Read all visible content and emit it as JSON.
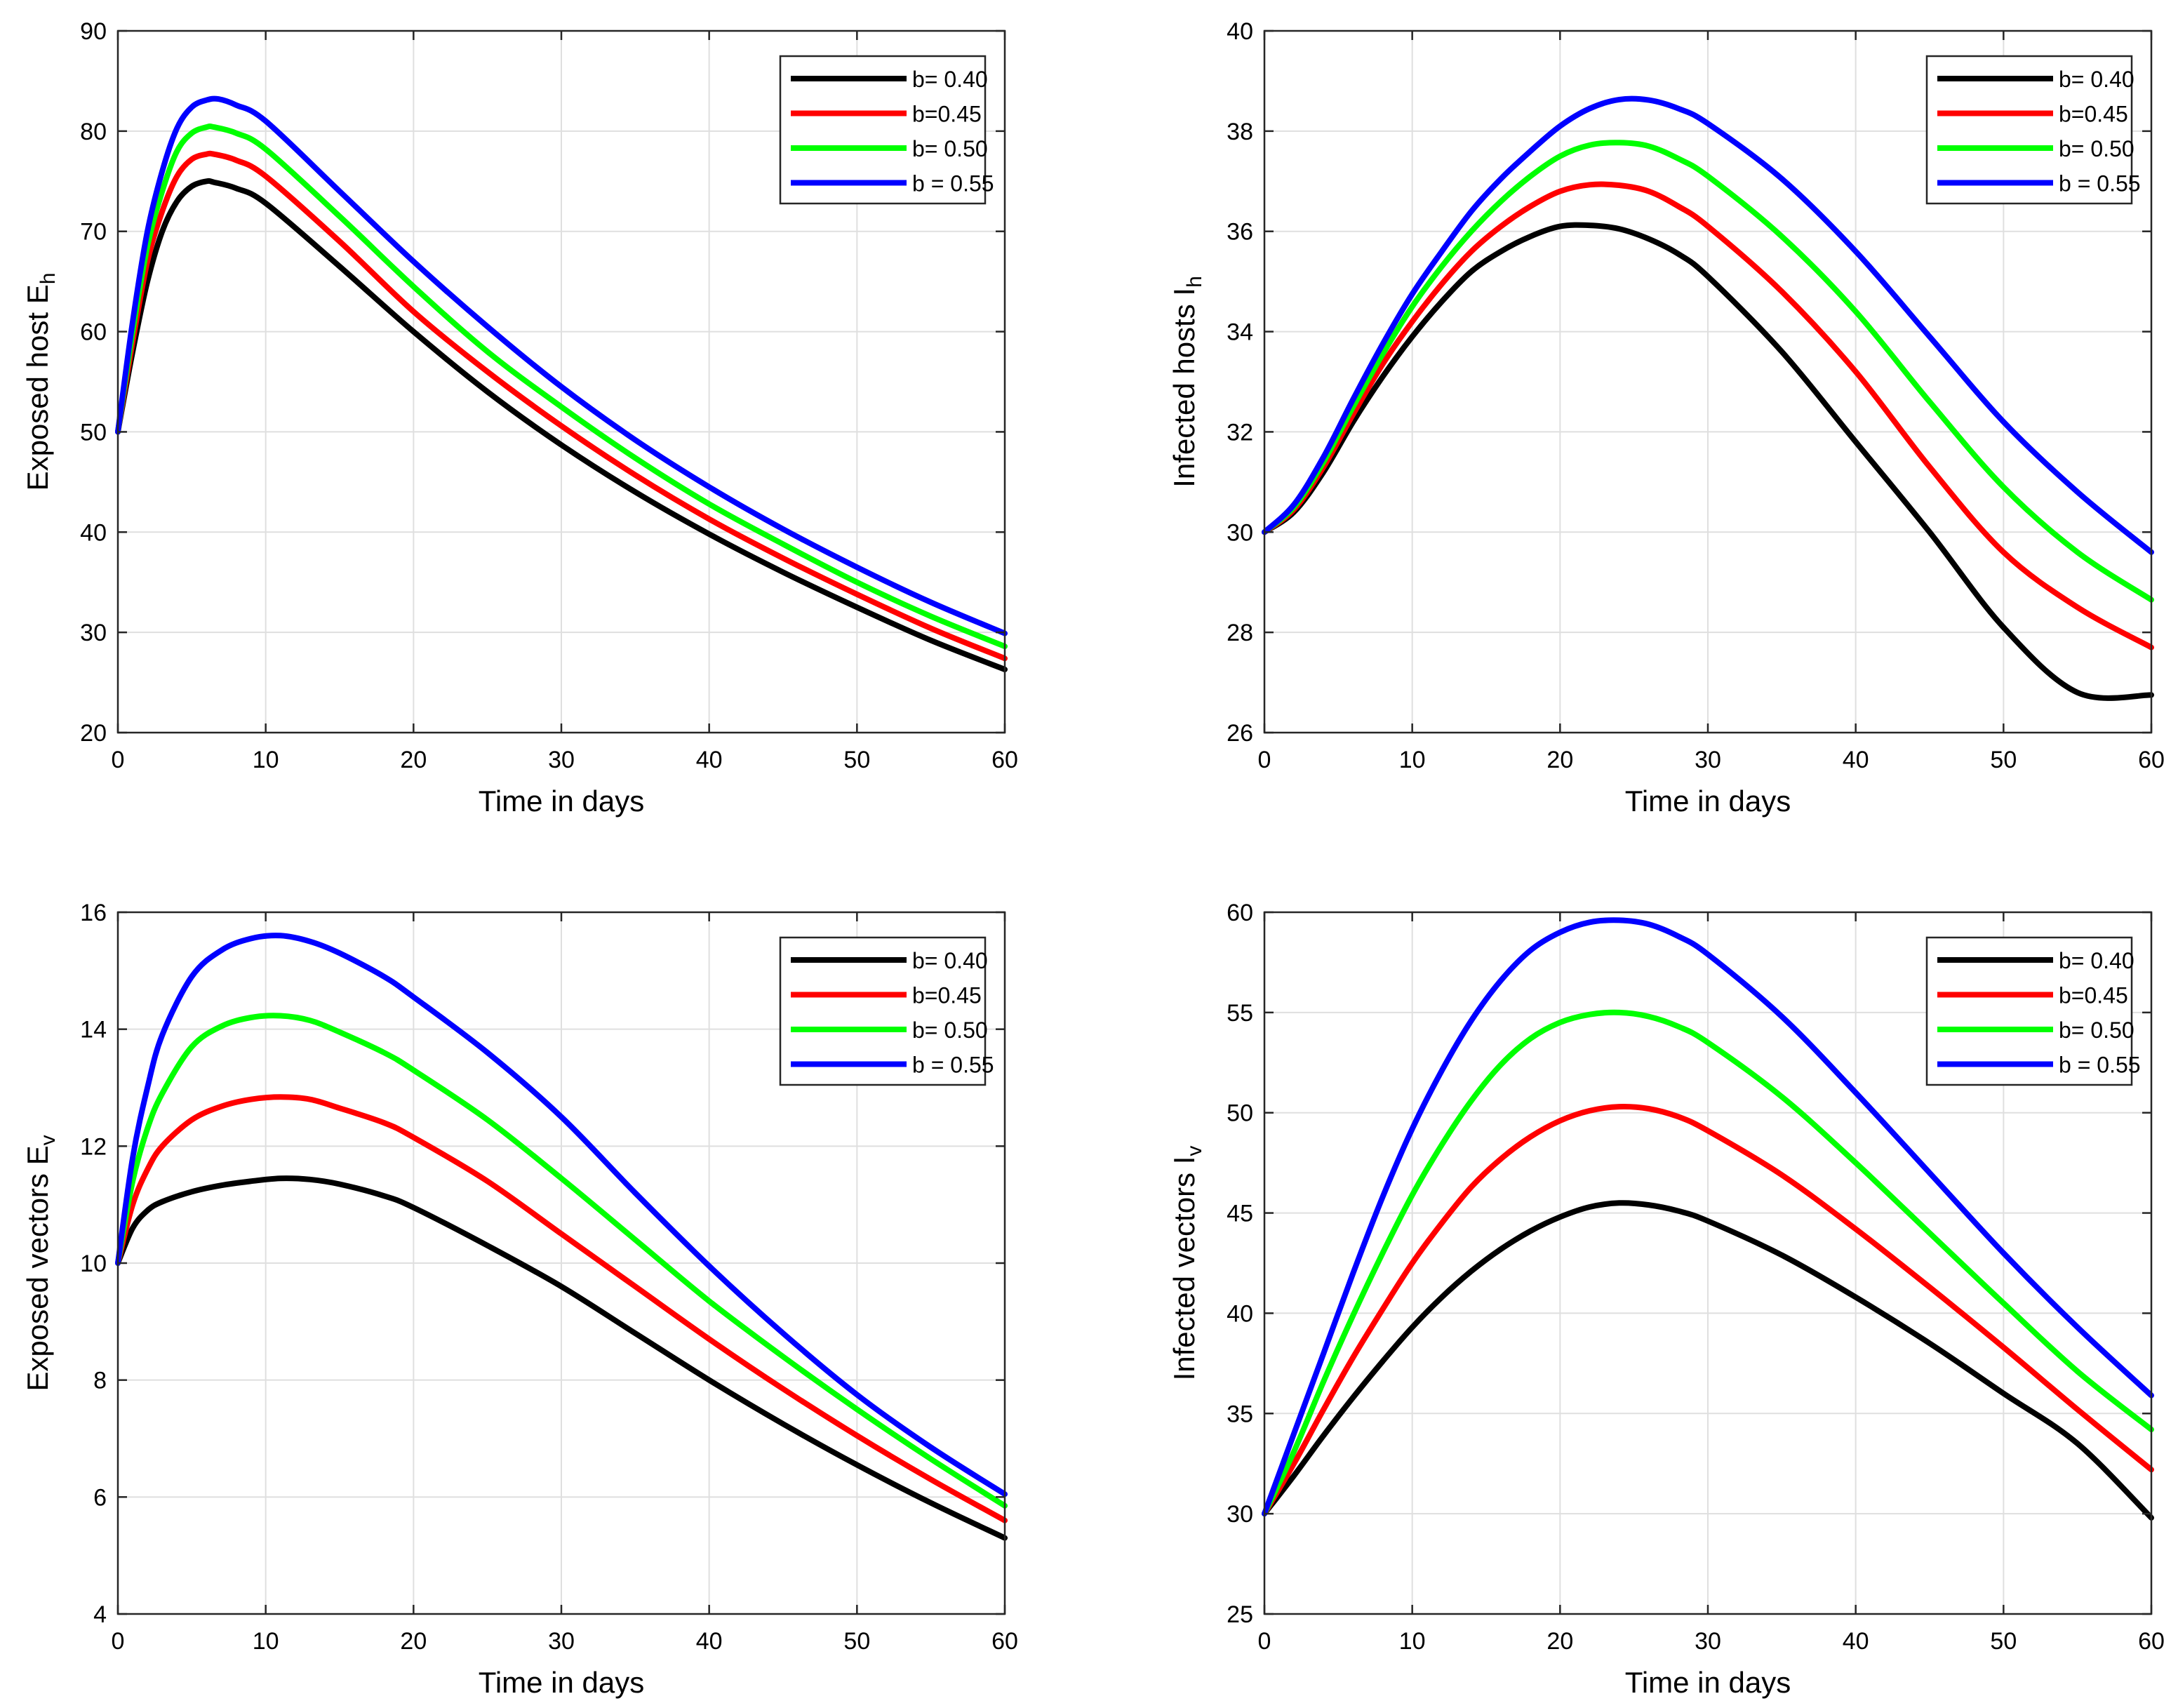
{
  "chart_data": [
    {
      "type": "line",
      "xlabel": "Time in days",
      "ylabel_main": "Exposed host E",
      "ylabel_sub": "h",
      "xlim": [
        0,
        60
      ],
      "ylim": [
        20,
        90
      ],
      "xticks": [
        0,
        10,
        20,
        30,
        40,
        50,
        60
      ],
      "yticks": [
        20,
        30,
        40,
        50,
        60,
        70,
        80,
        90
      ],
      "grid": true,
      "legend_position": "top-right",
      "series": [
        {
          "name": "b= 0.40",
          "color": "#000000",
          "x": [
            0,
            1,
            2,
            3,
            4,
            5,
            6,
            6.5,
            8,
            10,
            15,
            20,
            25,
            30,
            35,
            40,
            45,
            50,
            55,
            60
          ],
          "y": [
            50,
            58,
            65,
            70,
            73,
            74.5,
            75,
            74.9,
            74.3,
            72.8,
            66.5,
            60,
            54,
            48.7,
            44,
            39.8,
            36,
            32.5,
            29.2,
            26.3
          ]
        },
        {
          "name": "b=0.45",
          "color": "#ff0000",
          "x": [
            0,
            1,
            2,
            3,
            4,
            5,
            6,
            6.5,
            8,
            10,
            15,
            20,
            25,
            30,
            35,
            40,
            45,
            50,
            55,
            60
          ],
          "y": [
            50,
            59,
            67,
            72,
            75.5,
            77.2,
            77.7,
            77.7,
            77.1,
            75.5,
            69,
            62,
            56,
            50.6,
            45.7,
            41.3,
            37.4,
            33.8,
            30.4,
            27.4
          ]
        },
        {
          "name": "b= 0.50",
          "color": "#00ff00",
          "x": [
            0,
            1,
            2,
            3,
            4,
            5,
            6,
            6.5,
            8,
            10,
            15,
            20,
            25,
            30,
            35,
            40,
            45,
            50,
            55,
            60
          ],
          "y": [
            50,
            60,
            68.5,
            74,
            78,
            79.8,
            80.4,
            80.4,
            79.8,
            78.2,
            71.5,
            64.5,
            58,
            52.5,
            47.4,
            42.8,
            38.8,
            35,
            31.6,
            28.6
          ]
        },
        {
          "name": "b = 0.55",
          "color": "#0000ff",
          "x": [
            0,
            1,
            2,
            3,
            4,
            5,
            6,
            6.8,
            8,
            10,
            15,
            20,
            25,
            30,
            35,
            40,
            45,
            50,
            55,
            60
          ],
          "y": [
            50,
            61,
            70,
            76,
            80.3,
            82.4,
            83.1,
            83.2,
            82.6,
            81,
            74,
            67,
            60.5,
            54.5,
            49.2,
            44.5,
            40.3,
            36.5,
            33,
            29.9
          ]
        }
      ]
    },
    {
      "type": "line",
      "xlabel": "Time in days",
      "ylabel_main": "Infected  hosts I",
      "ylabel_sub": "h",
      "xlim": [
        0,
        60
      ],
      "ylim": [
        26,
        40
      ],
      "xticks": [
        0,
        10,
        20,
        30,
        40,
        50,
        60
      ],
      "yticks": [
        26,
        28,
        30,
        32,
        34,
        36,
        38,
        40
      ],
      "grid": true,
      "legend_position": "top-right",
      "series": [
        {
          "name": "b= 0.40",
          "color": "#000000",
          "x": [
            0,
            2,
            4,
            6,
            8,
            10,
            12,
            14,
            16,
            18,
            20,
            22,
            24,
            26,
            28,
            30,
            35,
            40,
            45,
            50,
            55,
            60
          ],
          "y": [
            30,
            30.4,
            31.2,
            32.2,
            33.1,
            33.9,
            34.6,
            35.2,
            35.6,
            35.9,
            36.1,
            36.12,
            36.05,
            35.85,
            35.55,
            35.1,
            33.6,
            31.8,
            30,
            28.1,
            26.8,
            26.75
          ]
        },
        {
          "name": "b=0.45",
          "color": "#ff0000",
          "x": [
            0,
            2,
            4,
            6,
            8,
            10,
            12,
            14,
            16,
            18,
            20,
            22,
            24,
            26,
            28,
            30,
            35,
            40,
            45,
            50,
            55,
            60
          ],
          "y": [
            30,
            30.45,
            31.3,
            32.35,
            33.35,
            34.2,
            34.95,
            35.6,
            36.1,
            36.5,
            36.8,
            36.93,
            36.92,
            36.8,
            36.5,
            36.1,
            34.8,
            33.2,
            31.3,
            29.6,
            28.5,
            27.7
          ]
        },
        {
          "name": "b= 0.50",
          "color": "#00ff00",
          "x": [
            0,
            2,
            4,
            6,
            8,
            10,
            12,
            14,
            16,
            18,
            20,
            22,
            24,
            26,
            28,
            30,
            35,
            40,
            45,
            50,
            55,
            60
          ],
          "y": [
            30,
            30.5,
            31.4,
            32.5,
            33.55,
            34.5,
            35.3,
            36,
            36.6,
            37.1,
            37.5,
            37.72,
            37.77,
            37.7,
            37.45,
            37.1,
            35.9,
            34.4,
            32.6,
            30.9,
            29.6,
            28.65
          ]
        },
        {
          "name": "b = 0.55",
          "color": "#0000ff",
          "x": [
            0,
            2,
            4,
            6,
            8,
            10,
            12,
            14,
            16,
            18,
            20,
            22,
            24,
            26,
            28,
            30,
            35,
            40,
            45,
            50,
            55,
            60
          ],
          "y": [
            30,
            30.55,
            31.5,
            32.65,
            33.75,
            34.75,
            35.6,
            36.4,
            37.05,
            37.6,
            38.1,
            38.45,
            38.63,
            38.62,
            38.45,
            38.15,
            37.05,
            35.6,
            33.9,
            32.2,
            30.8,
            29.6
          ]
        }
      ]
    },
    {
      "type": "line",
      "xlabel": "Time in days",
      "ylabel_main": "Exposed vectors E",
      "ylabel_sub": "v",
      "xlim": [
        0,
        60
      ],
      "ylim": [
        4,
        16
      ],
      "xticks": [
        0,
        10,
        20,
        30,
        40,
        50,
        60
      ],
      "yticks": [
        4,
        6,
        8,
        10,
        12,
        14,
        16
      ],
      "grid": true,
      "legend_position": "top-right",
      "series": [
        {
          "name": "b= 0.40",
          "color": "#000000",
          "x": [
            0,
            1,
            2,
            3,
            5,
            7,
            9,
            11,
            13,
            15,
            18,
            20,
            25,
            30,
            35,
            40,
            45,
            50,
            55,
            60
          ],
          "y": [
            10,
            10.6,
            10.9,
            11.05,
            11.22,
            11.33,
            11.4,
            11.45,
            11.43,
            11.35,
            11.15,
            10.95,
            10.3,
            9.6,
            8.8,
            8,
            7.25,
            6.55,
            5.9,
            5.3
          ]
        },
        {
          "name": "b=0.45",
          "color": "#ff0000",
          "x": [
            0,
            1,
            2,
            3,
            5,
            7,
            9,
            11,
            13,
            15,
            18,
            20,
            25,
            30,
            35,
            40,
            45,
            50,
            55,
            60
          ],
          "y": [
            10,
            11,
            11.6,
            12,
            12.45,
            12.68,
            12.8,
            12.84,
            12.8,
            12.65,
            12.4,
            12.15,
            11.4,
            10.5,
            9.6,
            8.7,
            7.85,
            7.05,
            6.3,
            5.6
          ]
        },
        {
          "name": "b= 0.50",
          "color": "#00ff00",
          "x": [
            0,
            1,
            2,
            3,
            5,
            7,
            9,
            11,
            13,
            15,
            18,
            20,
            25,
            30,
            35,
            40,
            45,
            50,
            55,
            60
          ],
          "y": [
            10,
            11.4,
            12.3,
            12.9,
            13.7,
            14.05,
            14.2,
            14.23,
            14.15,
            13.95,
            13.6,
            13.3,
            12.45,
            11.45,
            10.4,
            9.35,
            8.4,
            7.5,
            6.65,
            5.85
          ]
        },
        {
          "name": "b = 0.55",
          "color": "#0000ff",
          "x": [
            0,
            1,
            2,
            3,
            5,
            7,
            9,
            11,
            13,
            15,
            18,
            20,
            25,
            30,
            35,
            40,
            45,
            50,
            55,
            60
          ],
          "y": [
            10,
            11.8,
            13,
            13.9,
            14.9,
            15.35,
            15.55,
            15.6,
            15.5,
            15.3,
            14.9,
            14.55,
            13.6,
            12.5,
            11.2,
            9.95,
            8.8,
            7.75,
            6.85,
            6.05
          ]
        }
      ]
    },
    {
      "type": "line",
      "xlabel": "Time in days",
      "ylabel_main": "Infected vectors I",
      "ylabel_sub": "v",
      "xlim": [
        0,
        60
      ],
      "ylim": [
        25,
        60
      ],
      "xticks": [
        0,
        10,
        20,
        30,
        40,
        50,
        60
      ],
      "yticks": [
        25,
        30,
        35,
        40,
        45,
        50,
        55,
        60
      ],
      "grid": true,
      "legend_position": "top-right",
      "series": [
        {
          "name": "b= 0.40",
          "color": "#000000",
          "x": [
            0,
            2,
            4,
            6,
            8,
            10,
            12,
            14,
            16,
            18,
            20,
            22,
            24,
            26,
            28,
            30,
            35,
            40,
            45,
            50,
            55,
            60
          ],
          "y": [
            30,
            31.9,
            33.9,
            35.8,
            37.6,
            39.3,
            40.8,
            42.1,
            43.2,
            44.1,
            44.8,
            45.3,
            45.5,
            45.4,
            45.1,
            44.6,
            42.9,
            40.8,
            38.5,
            36,
            33.5,
            29.8
          ]
        },
        {
          "name": "b=0.45",
          "color": "#ff0000",
          "x": [
            0,
            2,
            4,
            6,
            8,
            10,
            12,
            14,
            16,
            18,
            20,
            22,
            24,
            26,
            28,
            30,
            35,
            40,
            45,
            50,
            55,
            60
          ],
          "y": [
            30,
            32.5,
            35.2,
            37.8,
            40.2,
            42.5,
            44.5,
            46.3,
            47.7,
            48.8,
            49.6,
            50.1,
            50.3,
            50.2,
            49.8,
            49.1,
            46.9,
            44.2,
            41.3,
            38.3,
            35.2,
            32.2
          ]
        },
        {
          "name": "b= 0.50",
          "color": "#00ff00",
          "x": [
            0,
            2,
            4,
            6,
            8,
            10,
            12,
            14,
            16,
            18,
            20,
            22,
            24,
            26,
            28,
            30,
            35,
            40,
            45,
            50,
            55,
            60
          ],
          "y": [
            30,
            33.1,
            36.6,
            39.9,
            43,
            45.9,
            48.4,
            50.6,
            52.4,
            53.7,
            54.5,
            54.9,
            55,
            54.8,
            54.3,
            53.5,
            50.8,
            47.5,
            44,
            40.5,
            37.1,
            34.2
          ]
        },
        {
          "name": "b = 0.55",
          "color": "#0000ff",
          "x": [
            0,
            2,
            4,
            6,
            8,
            10,
            12,
            14,
            16,
            18,
            20,
            22,
            24,
            26,
            28,
            30,
            35,
            40,
            45,
            50,
            55,
            60
          ],
          "y": [
            30,
            34,
            38,
            42,
            45.8,
            49.2,
            52.1,
            54.6,
            56.6,
            58.1,
            59,
            59.5,
            59.6,
            59.4,
            58.8,
            57.9,
            54.8,
            51,
            47,
            43,
            39.3,
            35.9
          ]
        }
      ]
    }
  ]
}
